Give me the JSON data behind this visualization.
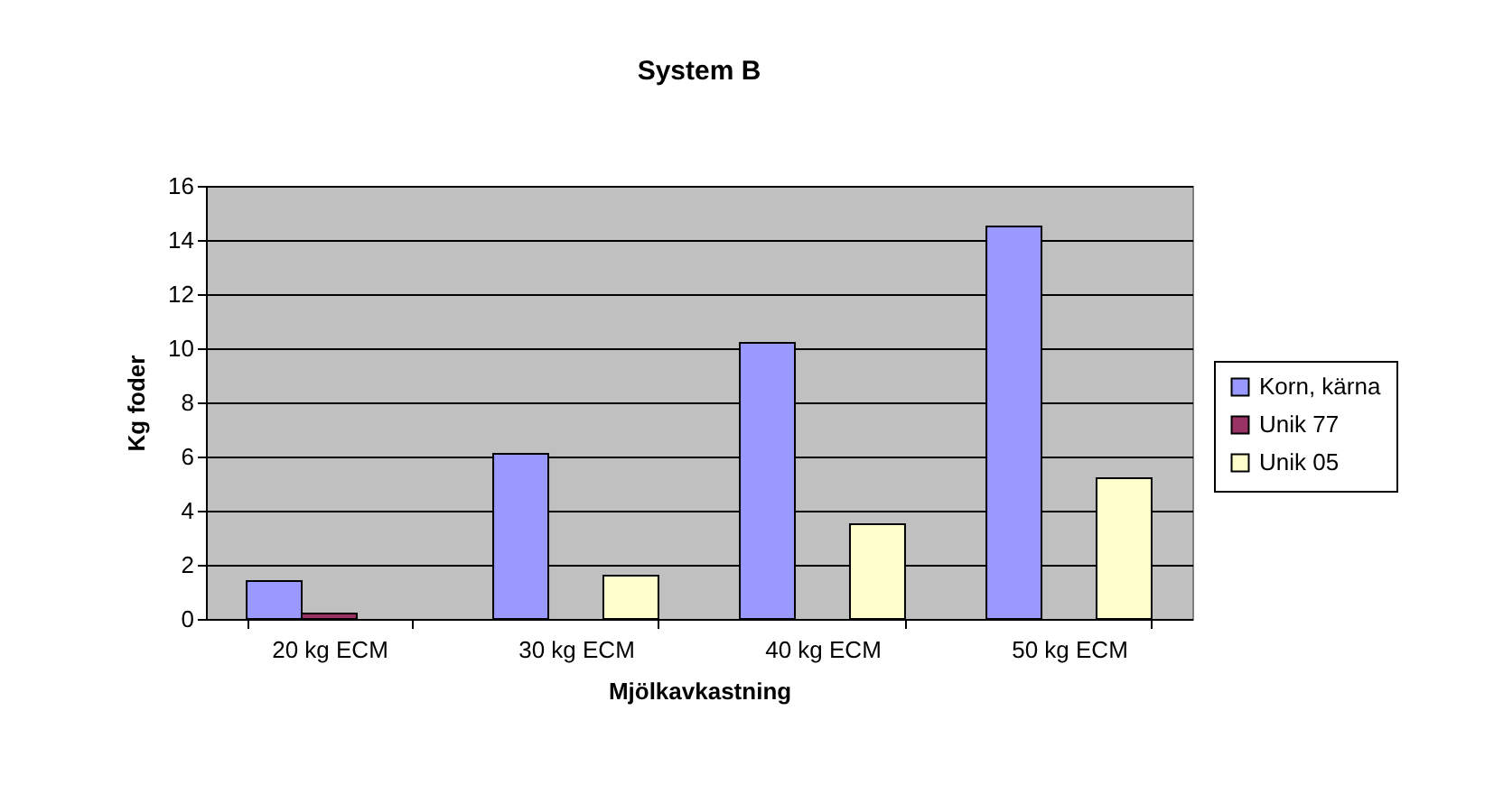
{
  "chart_data": {
    "type": "bar",
    "title": "System B",
    "xlabel": "Mjölkavkastning",
    "ylabel": "Kg foder",
    "categories": [
      "20 kg ECM",
      "30 kg ECM",
      "40 kg ECM",
      "50 kg ECM"
    ],
    "series": [
      {
        "name": "Korn, kärna",
        "color": "#9999ff",
        "values": [
          1.4,
          6.1,
          10.2,
          14.5
        ]
      },
      {
        "name": "Unik 77",
        "color": "#993366",
        "values": [
          0.2,
          null,
          null,
          null
        ]
      },
      {
        "name": "Unik 05",
        "color": "#ffffcc",
        "values": [
          null,
          1.6,
          3.5,
          5.2
        ]
      }
    ],
    "ylim": [
      0,
      16
    ],
    "yticks": [
      0,
      2,
      4,
      6,
      8,
      10,
      12,
      14,
      16
    ],
    "grid": "y",
    "legend": "right"
  }
}
